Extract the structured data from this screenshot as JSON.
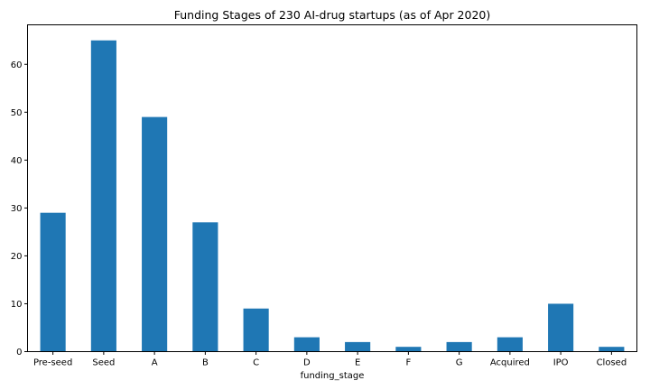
{
  "chart_data": {
    "type": "bar",
    "title": "Funding Stages of 230 AI-drug startups (as of Apr 2020)",
    "xlabel": "funding_stage",
    "ylabel": "",
    "categories": [
      "Pre-seed",
      "Seed",
      "A",
      "B",
      "C",
      "D",
      "E",
      "F",
      "G",
      "Acquired",
      "IPO",
      "Closed"
    ],
    "values": [
      29,
      65,
      49,
      27,
      9,
      3,
      2,
      1,
      2,
      3,
      10,
      1
    ],
    "ylim": [
      0,
      68.25
    ],
    "yticks": [
      0,
      10,
      20,
      30,
      40,
      50,
      60
    ],
    "bar_color": "#1f77b4",
    "grid": false,
    "legend": "none"
  }
}
